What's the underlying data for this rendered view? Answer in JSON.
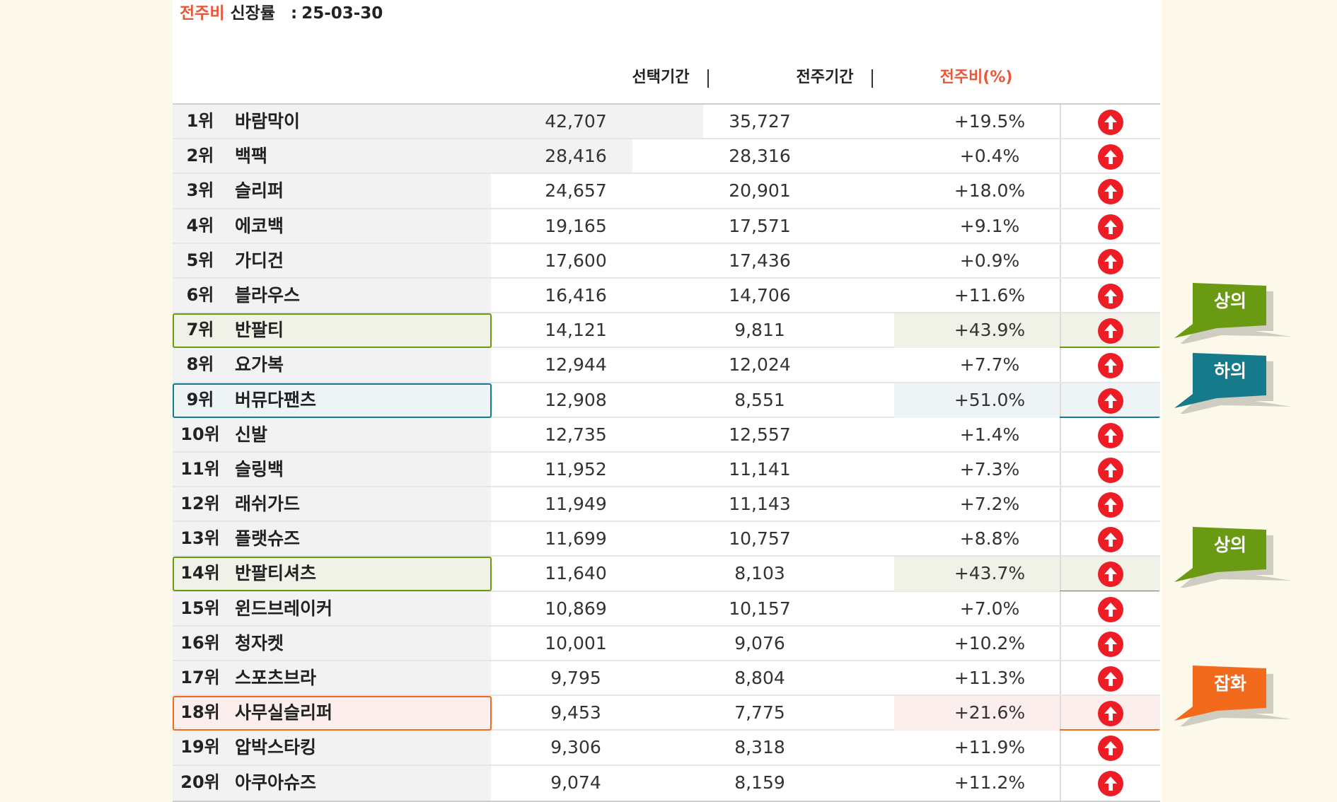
{
  "title": {
    "accent": "전주비",
    "label": "신장률",
    "colon": ":",
    "date": "25-03-30"
  },
  "headers": {
    "selected": "선택기간",
    "previous": "전주기간",
    "change": "전주비(%)",
    "sep": "|"
  },
  "rows": [
    {
      "rank": "1위",
      "keyword": "바람막이",
      "selected": "42,707",
      "previous": "35,727",
      "change": "+19.5%",
      "trend": "up",
      "selected_share": 1.0
    },
    {
      "rank": "2위",
      "keyword": "백팩",
      "selected": "28,416",
      "previous": "28,316",
      "change": "+0.4%",
      "trend": "up",
      "selected_share": 0.665
    },
    {
      "rank": "3위",
      "keyword": "슬리퍼",
      "selected": "24,657",
      "previous": "20,901",
      "change": "+18.0%",
      "trend": "up"
    },
    {
      "rank": "4위",
      "keyword": "에코백",
      "selected": "19,165",
      "previous": "17,571",
      "change": "+9.1%",
      "trend": "up"
    },
    {
      "rank": "5위",
      "keyword": "가디건",
      "selected": "17,600",
      "previous": "17,436",
      "change": "+0.9%",
      "trend": "up"
    },
    {
      "rank": "6위",
      "keyword": "블라우스",
      "selected": "16,416",
      "previous": "14,706",
      "change": "+11.6%",
      "trend": "up"
    },
    {
      "rank": "7위",
      "keyword": "반팔티",
      "selected": "14,121",
      "previous": "9,811",
      "change": "+43.9%",
      "trend": "up",
      "highlight": "green"
    },
    {
      "rank": "8위",
      "keyword": "요가복",
      "selected": "12,944",
      "previous": "12,024",
      "change": "+7.7%",
      "trend": "up"
    },
    {
      "rank": "9위",
      "keyword": "버뮤다팬츠",
      "selected": "12,908",
      "previous": "8,551",
      "change": "+51.0%",
      "trend": "up",
      "highlight": "teal"
    },
    {
      "rank": "10위",
      "keyword": "신발",
      "selected": "12,735",
      "previous": "12,557",
      "change": "+1.4%",
      "trend": "up"
    },
    {
      "rank": "11위",
      "keyword": "슬링백",
      "selected": "11,952",
      "previous": "11,141",
      "change": "+7.3%",
      "trend": "up"
    },
    {
      "rank": "12위",
      "keyword": "래쉬가드",
      "selected": "11,949",
      "previous": "11,143",
      "change": "+7.2%",
      "trend": "up"
    },
    {
      "rank": "13위",
      "keyword": "플랫슈즈",
      "selected": "11,699",
      "previous": "10,757",
      "change": "+8.8%",
      "trend": "up"
    },
    {
      "rank": "14위",
      "keyword": "반팔티셔츠",
      "selected": "11,640",
      "previous": "8,103",
      "change": "+43.7%",
      "trend": "up",
      "highlight": "green"
    },
    {
      "rank": "15위",
      "keyword": "윈드브레이커",
      "selected": "10,869",
      "previous": "10,157",
      "change": "+7.0%",
      "trend": "up"
    },
    {
      "rank": "16위",
      "keyword": "청자켓",
      "selected": "10,001",
      "previous": "9,076",
      "change": "+10.2%",
      "trend": "up"
    },
    {
      "rank": "17위",
      "keyword": "스포츠브라",
      "selected": "9,795",
      "previous": "8,804",
      "change": "+11.3%",
      "trend": "up"
    },
    {
      "rank": "18위",
      "keyword": "사무실슬리퍼",
      "selected": "9,453",
      "previous": "7,775",
      "change": "+21.6%",
      "trend": "up",
      "highlight": "orange"
    },
    {
      "rank": "19위",
      "keyword": "압박스타킹",
      "selected": "9,306",
      "previous": "8,318",
      "change": "+11.9%",
      "trend": "up"
    },
    {
      "rank": "20위",
      "keyword": "아쿠아슈즈",
      "selected": "9,074",
      "previous": "8,159",
      "change": "+11.2%",
      "trend": "up"
    }
  ],
  "callouts": [
    {
      "label": "상의",
      "color": "#6a9a12",
      "row": 6
    },
    {
      "label": "하의",
      "color": "#157a8a",
      "row": 8
    },
    {
      "label": "상의",
      "color": "#6a9a12",
      "row": 13
    },
    {
      "label": "잡화",
      "color": "#f26b1d",
      "row": 17
    }
  ],
  "colors": {
    "accent": "#e8583a",
    "up_icon": "#ee1c25",
    "green": "#6a9a12",
    "teal": "#157a8a",
    "orange": "#f26b1d"
  },
  "icons": {
    "trend_up": "arrow-up-circle-icon"
  }
}
